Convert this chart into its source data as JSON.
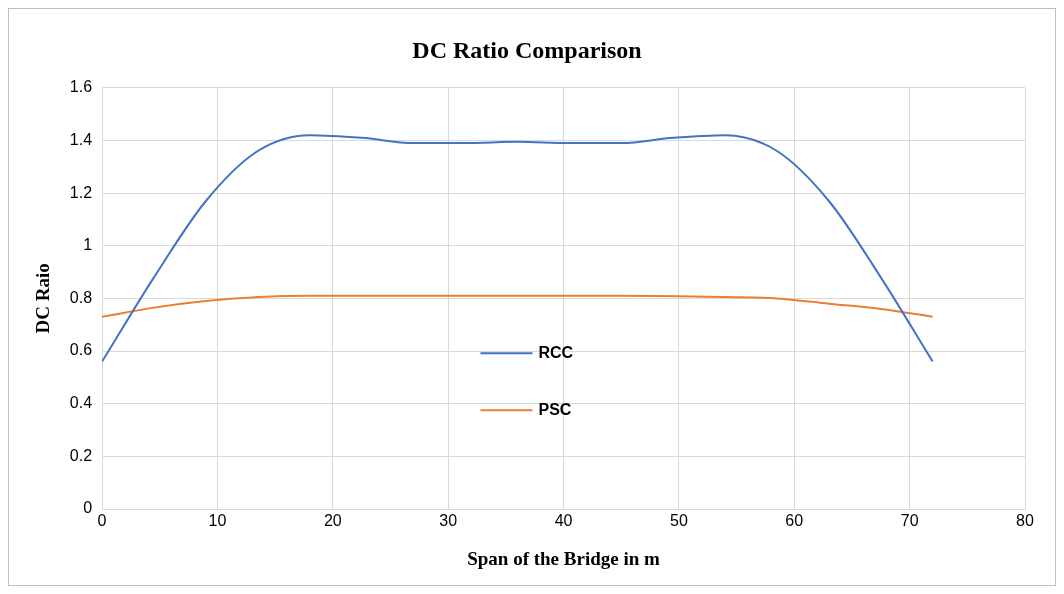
{
  "chart_data": {
    "type": "line",
    "title": "DC Ratio Comparison",
    "xlabel": "Span of the Bridge in m",
    "ylabel": "DC Raio",
    "series": [
      {
        "name": "RCC",
        "color": "#4472c4",
        "x": [
          0,
          4.5,
          9,
          13.5,
          18,
          22.5,
          27,
          31.5,
          36,
          40.5,
          45,
          49.5,
          54,
          58.5,
          63,
          67.5,
          72
        ],
        "values": [
          0.56,
          0.88,
          1.17,
          1.36,
          1.42,
          1.41,
          1.39,
          1.39,
          1.395,
          1.39,
          1.39,
          1.41,
          1.42,
          1.36,
          1.17,
          0.88,
          0.56
        ]
      },
      {
        "name": "PSC",
        "color": "#ed7d31",
        "x": [
          0,
          4.5,
          9,
          13.5,
          18,
          27,
          36,
          45,
          54,
          58.5,
          63,
          67.5,
          72
        ],
        "values": [
          0.73,
          0.765,
          0.79,
          0.805,
          0.81,
          0.81,
          0.81,
          0.81,
          0.805,
          0.8,
          0.78,
          0.76,
          0.73
        ]
      }
    ],
    "xlim": [
      0,
      80
    ],
    "xticks": [
      0,
      10,
      20,
      30,
      40,
      50,
      60,
      70,
      80
    ],
    "ylim": [
      0,
      1.6
    ],
    "yticks": [
      0,
      0.2,
      0.4,
      0.6,
      0.8,
      1,
      1.2,
      1.4,
      1.6
    ],
    "grid": true,
    "legend": "center",
    "marker": "none",
    "line_style": "solid"
  }
}
